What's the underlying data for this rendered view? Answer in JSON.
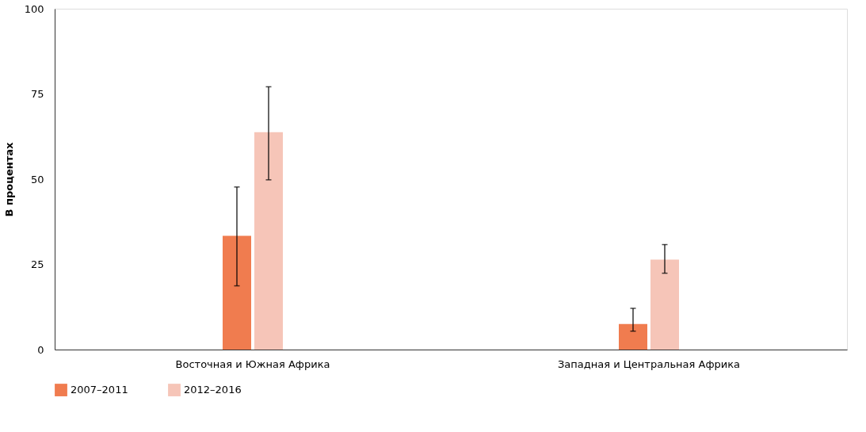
{
  "chart_data": {
    "type": "bar",
    "ylabel": "В процентах",
    "categories": [
      "Восточная и Южная Африка",
      "Западная и Центральная Африка"
    ],
    "series": [
      {
        "name": "2007–2011",
        "color": "#f07c4f",
        "values": [
          33.4,
          7.5
        ],
        "errors": [
          [
            18.7,
            47.7
          ],
          [
            5.4,
            12.1
          ]
        ]
      },
      {
        "name": "2012–2016",
        "color": "#f6c5b8",
        "values": [
          63.8,
          26.4
        ],
        "errors": [
          [
            49.8,
            77.1
          ],
          [
            22.4,
            30.8
          ]
        ]
      }
    ],
    "ylim": [
      0,
      100
    ],
    "yticks": [
      0,
      25,
      50,
      75,
      100
    ],
    "grid": false,
    "legend": "bottom left"
  }
}
